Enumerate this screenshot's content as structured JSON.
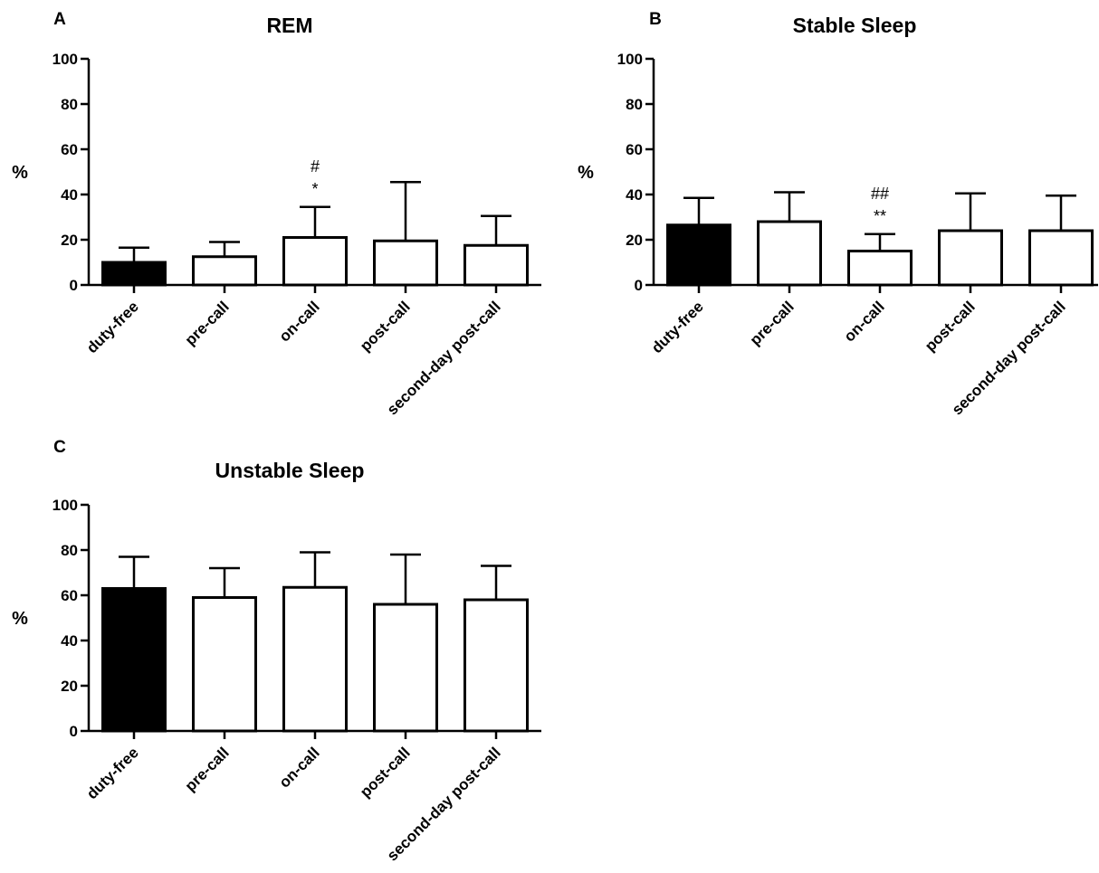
{
  "colors": {
    "filled_bar": "#000000",
    "open_bar": "#ffffff",
    "stroke": "#000000"
  },
  "chart_data": [
    {
      "panel": "A",
      "type": "bar",
      "title": "REM",
      "ylabel": "%",
      "xlabel": "",
      "ylim": [
        0,
        100
      ],
      "yticks": [
        0,
        20,
        40,
        60,
        80,
        100
      ],
      "categories": [
        "duty-free",
        "pre-call",
        "on-call",
        "post-call",
        "second-day post-call"
      ],
      "values": [
        10,
        12.5,
        21,
        19.5,
        17.5
      ],
      "error_upper": [
        16.5,
        19,
        34.5,
        45.5,
        30.5
      ],
      "filled": [
        true,
        false,
        false,
        false,
        false
      ],
      "annotations": [
        {
          "category": "on-call",
          "lines": [
            "#",
            "*"
          ]
        }
      ]
    },
    {
      "panel": "B",
      "type": "bar",
      "title": "Stable Sleep",
      "ylabel": "%",
      "xlabel": "",
      "ylim": [
        0,
        100
      ],
      "yticks": [
        0,
        20,
        40,
        60,
        80,
        100
      ],
      "categories": [
        "duty-free",
        "pre-call",
        "on-call",
        "post-call",
        "second-day post-call"
      ],
      "values": [
        26.5,
        28,
        15,
        24,
        24
      ],
      "error_upper": [
        38.5,
        41,
        22.5,
        40.5,
        39.5
      ],
      "filled": [
        true,
        false,
        false,
        false,
        false
      ],
      "annotations": [
        {
          "category": "on-call",
          "lines": [
            "##",
            "**"
          ]
        }
      ]
    },
    {
      "panel": "C",
      "type": "bar",
      "title": "Unstable Sleep",
      "ylabel": "%",
      "xlabel": "",
      "ylim": [
        0,
        100
      ],
      "yticks": [
        0,
        20,
        40,
        60,
        80,
        100
      ],
      "categories": [
        "duty-free",
        "pre-call",
        "on-call",
        "post-call",
        "second-day post-call"
      ],
      "values": [
        63,
        59,
        63.5,
        56,
        58
      ],
      "error_upper": [
        77,
        72,
        79,
        78,
        73
      ],
      "filled": [
        true,
        false,
        false,
        false,
        false
      ],
      "annotations": []
    }
  ]
}
